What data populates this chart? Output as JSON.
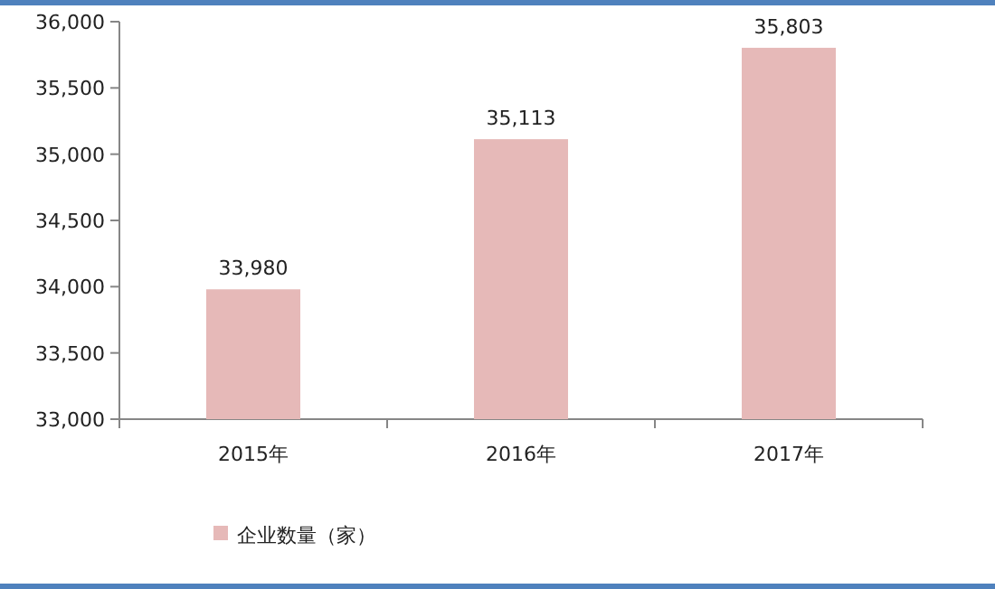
{
  "chart_data": {
    "type": "bar",
    "categories": [
      "2015年",
      "2016年",
      "2017年"
    ],
    "series": [
      {
        "name": "企业数量（家）",
        "color": "#e6b9b8",
        "values": [
          33980,
          35113,
          35803
        ],
        "value_labels": [
          "33,980",
          "35,113",
          "35,803"
        ]
      }
    ],
    "ylim": [
      33000,
      36000
    ],
    "yticks": [
      {
        "value": 33000,
        "label": "33,000"
      },
      {
        "value": 33500,
        "label": "33,500"
      },
      {
        "value": 34000,
        "label": "34,000"
      },
      {
        "value": 34500,
        "label": "34,500"
      },
      {
        "value": 35000,
        "label": "35,000"
      },
      {
        "value": 35500,
        "label": "35,500"
      },
      {
        "value": 36000,
        "label": "36,000"
      }
    ],
    "grid": false,
    "legend": "bottom left"
  }
}
